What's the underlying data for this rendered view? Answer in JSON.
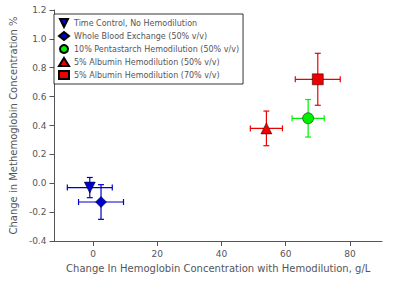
{
  "chart_data": {
    "type": "scatter",
    "xlabel": "Change In Hemoglobin Concentration with Hemodilution, g/L",
    "ylabel": "Change in Methemoglobin Concentration %",
    "xlim": [
      -12,
      90
    ],
    "ylim": [
      -0.4,
      1.2
    ],
    "xticks": [
      0,
      20,
      40,
      60,
      80
    ],
    "yticks": [
      -0.4,
      -0.2,
      {
        "value": 0.0,
        "label": "0.0"
      },
      0.2,
      0.4,
      0.6,
      0.8,
      {
        "value": 1.0,
        "label": "1.0"
      },
      1.2
    ],
    "grid": false,
    "legend": "upper left",
    "series": [
      {
        "name": "Time Control, No Hemodilution",
        "color": "#0000cc",
        "marker": "triangle-down",
        "x": [
          -1.0
        ],
        "values": [
          -0.03
        ],
        "xerr": [
          7
        ],
        "yerr": [
          0.07
        ]
      },
      {
        "name": "Whole Blood Exchange (50% v/v)",
        "color": "#0000cc",
        "marker": "diamond",
        "x": [
          2.5
        ],
        "values": [
          -0.13
        ],
        "xerr": [
          7
        ],
        "yerr": [
          0.12
        ]
      },
      {
        "name": "10% Pentastarch Hemodilution (50% v/v)",
        "color": "#00ee00",
        "marker": "circle",
        "x": [
          67
        ],
        "values": [
          0.45
        ],
        "xerr": [
          5
        ],
        "yerr": [
          0.13
        ]
      },
      {
        "name": "5% Albumin Hemodilution (50% v/v)",
        "color": "#ee0000",
        "marker": "triangle-up",
        "x": [
          54
        ],
        "values": [
          0.38
        ],
        "xerr": [
          5
        ],
        "yerr": [
          0.12
        ]
      },
      {
        "name": "5% Albumin Hemodilution (70% v/v)",
        "color": "#ee0000",
        "marker": "square",
        "x": [
          70
        ],
        "values": [
          0.72
        ],
        "xerr": [
          7
        ],
        "yerr": [
          0.18
        ]
      }
    ]
  }
}
